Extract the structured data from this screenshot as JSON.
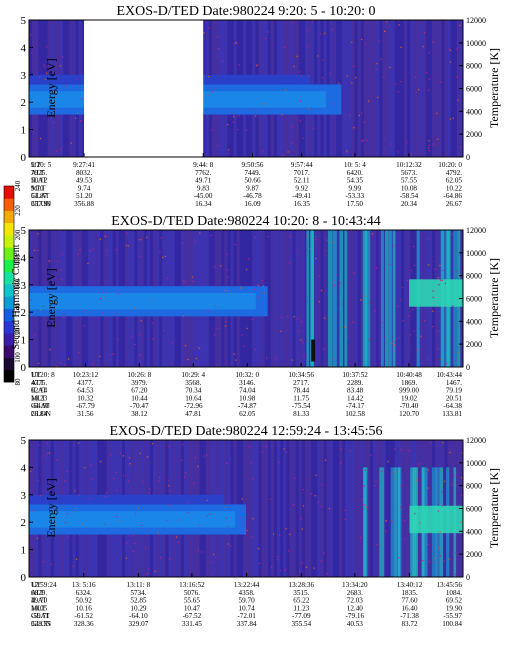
{
  "colorbar": {
    "label": "Second Harmonic Current",
    "ticks": [
      "80",
      "100",
      "120",
      "140",
      "160",
      "180",
      "200",
      "220",
      "240"
    ],
    "colors": [
      "#000000",
      "#1a0a30",
      "#3a0a6e",
      "#3c1fa8",
      "#2a36d0",
      "#1060e0",
      "#0f9bd6",
      "#16c2c9",
      "#19e0a0",
      "#1ef04a",
      "#6bf21c",
      "#c9f015",
      "#f5e50f",
      "#f5a80d",
      "#f0600a",
      "#e01005"
    ]
  },
  "chart_data": [
    {
      "type": "heatmap",
      "title": "EXOS-D/TED   Date:980224  9:20: 5 - 10:20: 0",
      "ylabel": "Energy [eV]",
      "y2label": "Temperature [K]",
      "ylim": [
        0,
        5
      ],
      "y2lim": [
        0,
        12000
      ],
      "yticks": [
        "0",
        "1",
        "2",
        "3",
        "4",
        "5"
      ],
      "y2ticks": [
        "0",
        "2000",
        "4000",
        "6000",
        "8000",
        "10000",
        "12000"
      ],
      "data_gap": {
        "from": "9:27:41",
        "to": "9:44: 8"
      },
      "band_center_eV": 2.1,
      "row_labels": [
        "UT",
        "ALT",
        "ILAT",
        "MLT",
        "GLAT",
        "GLON"
      ],
      "columns": [
        [
          "9:20: 5",
          "7925.",
          "50.12",
          "9.70",
          "51.87",
          "357.90"
        ],
        [
          "9:27:41",
          "8032.",
          "49.53",
          "9.74",
          "51.20",
          "356.88"
        ],
        [
          "9:44: 8",
          "7762.",
          "49.71",
          "9.83",
          "-45.00",
          "16.34"
        ],
        [
          "9:50:56",
          "7449.",
          "50.66",
          "9.87",
          "-46.78",
          "16.09"
        ],
        [
          "9:57:44",
          "7017.",
          "52.11",
          "9.92",
          "-49.41",
          "16.35"
        ],
        [
          "10: 5: 4",
          "6420.",
          "54.35",
          "9.99",
          "-53.33",
          "17.50"
        ],
        [
          "10:12:32",
          "5673.",
          "57.55",
          "10.08",
          "-58.54",
          "20.34"
        ],
        [
          "10:20: 0",
          "4792.",
          "62.05",
          "10.22",
          "-64.86",
          "26.67"
        ]
      ]
    },
    {
      "type": "heatmap",
      "title": "EXOS-D/TED   Date:980224  10:20: 8 - 10:43:44",
      "ylabel": "Energy [eV]",
      "y2label": "Temperature [K]",
      "ylim": [
        0,
        5
      ],
      "y2lim": [
        0,
        12000
      ],
      "yticks": [
        "0",
        "1",
        "2",
        "3",
        "4",
        "5"
      ],
      "y2ticks": [
        "0",
        "2000",
        "4000",
        "6000",
        "8000",
        "10000",
        "12000"
      ],
      "band_center_eV": 2.4,
      "row_labels": [
        "UT",
        "ALT",
        "ILAT",
        "MLT",
        "GLAT",
        "GLON"
      ],
      "columns": [
        [
          "10:20: 8",
          "4775.",
          "62.14",
          "10.23",
          "-64.98",
          "26.84"
        ],
        [
          "10:23:12",
          "4377.",
          "64.53",
          "10.32",
          "-67.79",
          "31.56"
        ],
        [
          "10:26: 8",
          "3979.",
          "67.20",
          "10.44",
          "-70.47",
          "38.12"
        ],
        [
          "10:29: 4",
          "3568.",
          "70.34",
          "10.64",
          "-72.96",
          "47.81"
        ],
        [
          "10:32: 0",
          "3146.",
          "74.04",
          "10.98",
          "-74.87",
          "62.05"
        ],
        [
          "10:34:56",
          "2717.",
          "78.44",
          "11.75",
          "-75.54",
          "81.33"
        ],
        [
          "10:37:52",
          "2289.",
          "83.48",
          "14.42",
          "-74.17",
          "102.58"
        ],
        [
          "10:40:48",
          "1869.",
          "999.00",
          "19.02",
          "-70.40",
          "120.70"
        ],
        [
          "10:43:44",
          "1467.",
          "79.19",
          "20.51",
          "-64.38",
          "133.81"
        ]
      ]
    },
    {
      "type": "heatmap",
      "title": "EXOS-D/TED   Date:980224  12:59:24 - 13:45:56",
      "ylabel": "Energy [eV]",
      "y2label": "Temperature [K]",
      "ylim": [
        0,
        5
      ],
      "y2lim": [
        0,
        12000
      ],
      "yticks": [
        "0",
        "1",
        "2",
        "3",
        "4",
        "5"
      ],
      "y2ticks": [
        "0",
        "2000",
        "4000",
        "6000",
        "8000",
        "10000",
        "12000"
      ],
      "band_center_eV": 2.1,
      "row_labels": [
        "UT",
        "ALT",
        "ILAT",
        "MLT",
        "GLAT",
        "GLON"
      ],
      "columns": [
        [
          "12:59:24",
          "6829.",
          "49.70",
          "10.05",
          "-59.71",
          "328.55"
        ],
        [
          "13: 5:16",
          "6324.",
          "50.92",
          "10.16",
          "-61.52",
          "328.36"
        ],
        [
          "13:11: 8",
          "5734.",
          "52.85",
          "10.29",
          "-64.10",
          "329.07"
        ],
        [
          "13:16:52",
          "5076.",
          "55.65",
          "10.47",
          "-67.52",
          "331.45"
        ],
        [
          "13:22:44",
          "4358.",
          "59.70",
          "10.74",
          "-72.01",
          "337.84"
        ],
        [
          "13:28:36",
          "3515.",
          "65.22",
          "11.23",
          "-77.09",
          "355.54"
        ],
        [
          "13:34:20",
          "2683.",
          "72.03",
          "12.40",
          "-79.16",
          "40.53"
        ],
        [
          "13:40:12",
          "1835.",
          "77.60",
          "16.40",
          "-71.38",
          "83.72"
        ],
        [
          "13:45:56",
          "1084.",
          "69.52",
          "19.90",
          "-55.97",
          "100.84"
        ]
      ]
    }
  ]
}
